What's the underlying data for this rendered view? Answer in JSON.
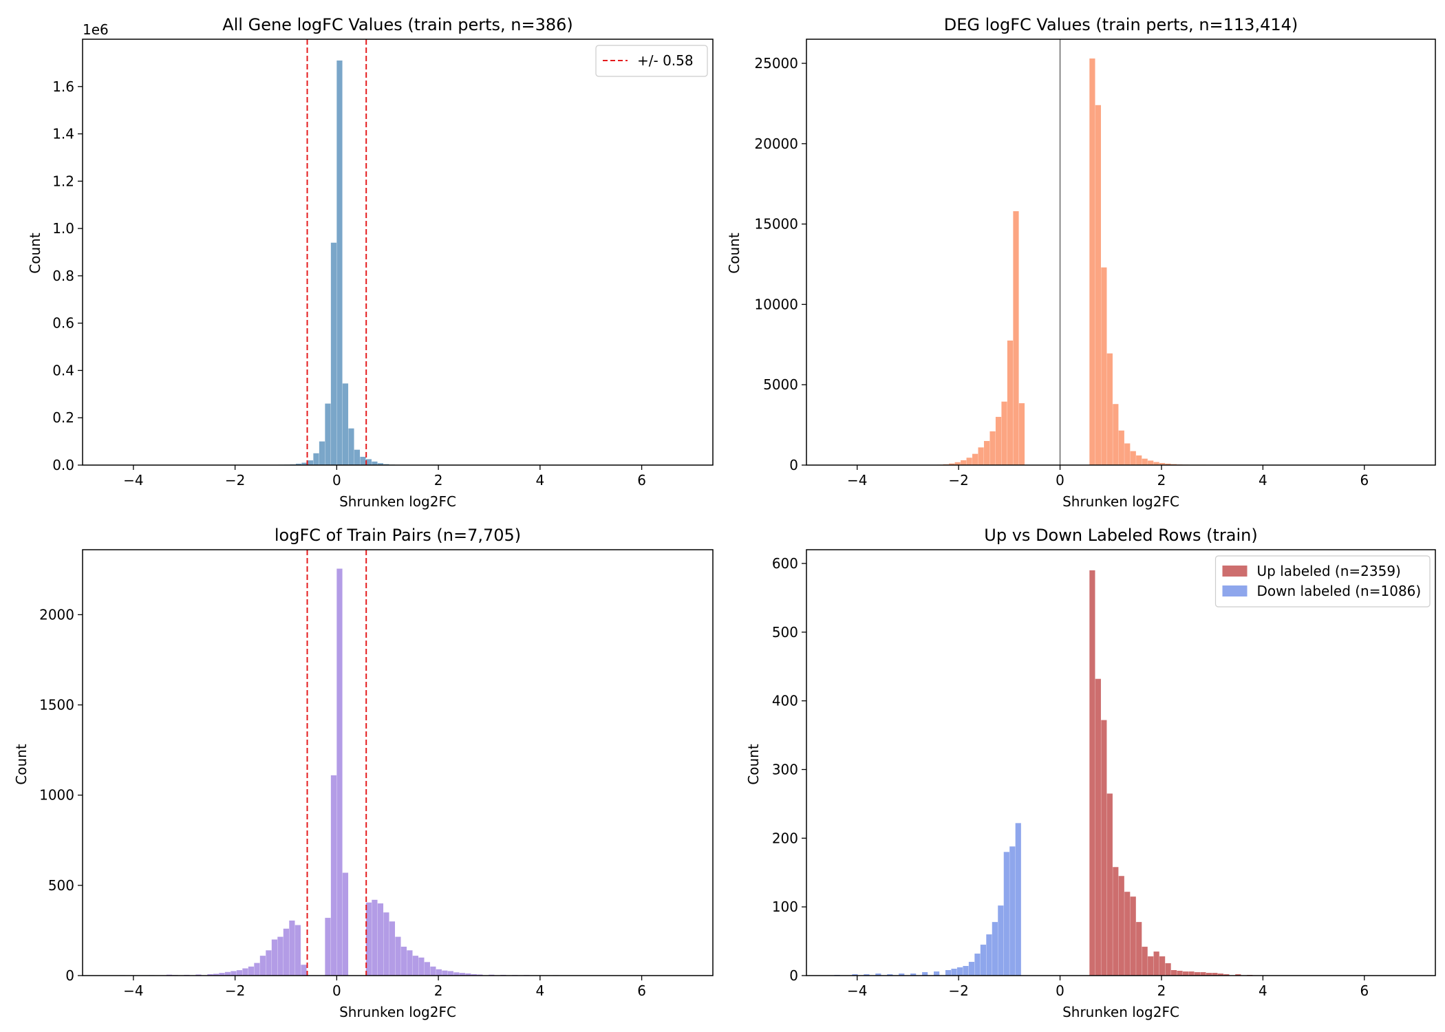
{
  "chart_data": [
    {
      "type": "bar",
      "title": "All Gene logFC Values (train perts, n=386)",
      "xlabel": "Shrunken log2FC",
      "ylabel": "Count",
      "y_offset_label": "1e6",
      "xlim": [
        -5.0,
        7.4
      ],
      "ylim": [
        0,
        1.8
      ],
      "x_ticks": [
        -4,
        -2,
        0,
        2,
        4,
        6
      ],
      "x_tick_labels": [
        "−4",
        "−2",
        "0",
        "2",
        "4",
        "6"
      ],
      "y_ticks": [
        0,
        0.2,
        0.4,
        0.6,
        0.8,
        1.0,
        1.2,
        1.4,
        1.6
      ],
      "y_tick_labels": [
        "0.0",
        "0.2",
        "0.4",
        "0.6",
        "0.8",
        "1.0",
        "1.2",
        "1.4",
        "1.6"
      ],
      "bin_width": 0.115,
      "color": "#7aa6c9",
      "series": [
        {
          "name": "",
          "bins": [
            [
              -1.15,
              0.001
            ],
            [
              -1.035,
              0.002
            ],
            [
              -0.92,
              0.003
            ],
            [
              -0.805,
              0.006
            ],
            [
              -0.69,
              0.01
            ],
            [
              -0.575,
              0.02
            ],
            [
              -0.46,
              0.05
            ],
            [
              -0.345,
              0.1
            ],
            [
              -0.23,
              0.26
            ],
            [
              -0.115,
              0.94
            ],
            [
              0.0,
              1.71
            ],
            [
              0.115,
              0.345
            ],
            [
              0.23,
              0.155
            ],
            [
              0.345,
              0.065
            ],
            [
              0.46,
              0.035
            ],
            [
              0.575,
              0.025
            ],
            [
              0.69,
              0.015
            ],
            [
              0.805,
              0.008
            ],
            [
              0.92,
              0.004
            ],
            [
              1.035,
              0.002
            ]
          ]
        }
      ],
      "vlines": [
        {
          "x": -0.58,
          "color": "#e41a1c",
          "style": "dashed"
        },
        {
          "x": 0.58,
          "color": "#e41a1c",
          "style": "dashed"
        }
      ],
      "legend": {
        "position": "top-right",
        "entries": [
          {
            "label": "+/- 0.58",
            "kind": "dashed-line",
            "color": "#e41a1c"
          }
        ]
      }
    },
    {
      "type": "bar",
      "title": "DEG logFC Values (train perts, n=113,414)",
      "xlabel": "Shrunken log2FC",
      "ylabel": "Count",
      "xlim": [
        -5.0,
        7.4
      ],
      "ylim": [
        0,
        26500
      ],
      "x_ticks": [
        -4,
        -2,
        0,
        2,
        4,
        6
      ],
      "x_tick_labels": [
        "−4",
        "−2",
        "0",
        "2",
        "4",
        "6"
      ],
      "y_ticks": [
        0,
        5000,
        10000,
        15000,
        20000,
        25000
      ],
      "y_tick_labels": [
        "0",
        "5000",
        "10000",
        "15000",
        "20000",
        "25000"
      ],
      "bin_width": 0.1155,
      "color": "#fca582",
      "series": [
        {
          "name": "",
          "bins": [
            [
              -2.42,
              20
            ],
            [
              -2.305,
              50
            ],
            [
              -2.19,
              100
            ],
            [
              -2.075,
              180
            ],
            [
              -1.96,
              300
            ],
            [
              -1.845,
              460
            ],
            [
              -1.73,
              700
            ],
            [
              -1.615,
              1100
            ],
            [
              -1.5,
              1500
            ],
            [
              -1.385,
              2100
            ],
            [
              -1.27,
              3000
            ],
            [
              -1.155,
              3950
            ],
            [
              -1.04,
              7750
            ],
            [
              -0.925,
              15800
            ],
            [
              -0.81,
              3850
            ],
            [
              0.58,
              25300
            ],
            [
              0.695,
              22400
            ],
            [
              0.81,
              12300
            ],
            [
              0.925,
              6950
            ],
            [
              1.04,
              3800
            ],
            [
              1.155,
              2150
            ],
            [
              1.27,
              1350
            ],
            [
              1.385,
              870
            ],
            [
              1.5,
              600
            ],
            [
              1.615,
              400
            ],
            [
              1.73,
              280
            ],
            [
              1.845,
              190
            ],
            [
              1.96,
              130
            ],
            [
              2.075,
              90
            ],
            [
              2.19,
              60
            ],
            [
              2.305,
              40
            ],
            [
              2.42,
              30
            ],
            [
              2.535,
              20
            ],
            [
              2.65,
              12
            ],
            [
              2.765,
              8
            ]
          ]
        }
      ],
      "vlines": [
        {
          "x": 0,
          "color": "#555555",
          "style": "solid"
        }
      ]
    },
    {
      "type": "bar",
      "title": "logFC of Train Pairs (n=7,705)",
      "xlabel": "Shrunken log2FC",
      "ylabel": "Count",
      "xlim": [
        -5.0,
        7.4
      ],
      "ylim": [
        0,
        2360
      ],
      "x_ticks": [
        -4,
        -2,
        0,
        2,
        4,
        6
      ],
      "x_tick_labels": [
        "−4",
        "−2",
        "0",
        "2",
        "4",
        "6"
      ],
      "y_ticks": [
        0,
        500,
        1000,
        1500,
        2000
      ],
      "y_tick_labels": [
        "0",
        "500",
        "1000",
        "1500",
        "2000"
      ],
      "bin_width": 0.115,
      "color": "#b39ce6",
      "series": [
        {
          "name": "",
          "bins": [
            [
              -4.27,
              2
            ],
            [
              -3.695,
              2
            ],
            [
              -3.35,
              5
            ],
            [
              -3.235,
              3
            ],
            [
              -3.005,
              4
            ],
            [
              -2.775,
              6
            ],
            [
              -2.545,
              8
            ],
            [
              -2.43,
              10
            ],
            [
              -2.315,
              15
            ],
            [
              -2.2,
              20
            ],
            [
              -2.085,
              25
            ],
            [
              -1.97,
              30
            ],
            [
              -1.855,
              40
            ],
            [
              -1.74,
              50
            ],
            [
              -1.625,
              70
            ],
            [
              -1.51,
              110
            ],
            [
              -1.395,
              140
            ],
            [
              -1.28,
              200
            ],
            [
              -1.165,
              215
            ],
            [
              -1.05,
              260
            ],
            [
              -0.935,
              305
            ],
            [
              -0.82,
              280
            ],
            [
              -0.705,
              60
            ],
            [
              -0.23,
              320
            ],
            [
              -0.115,
              1110
            ],
            [
              0.0,
              2255
            ],
            [
              0.115,
              570
            ],
            [
              0.575,
              405
            ],
            [
              0.69,
              420
            ],
            [
              0.805,
              400
            ],
            [
              0.92,
              350
            ],
            [
              1.035,
              300
            ],
            [
              1.15,
              215
            ],
            [
              1.265,
              160
            ],
            [
              1.38,
              140
            ],
            [
              1.495,
              110
            ],
            [
              1.61,
              100
            ],
            [
              1.725,
              75
            ],
            [
              1.84,
              50
            ],
            [
              1.955,
              35
            ],
            [
              2.07,
              28
            ],
            [
              2.185,
              25
            ],
            [
              2.3,
              18
            ],
            [
              2.415,
              15
            ],
            [
              2.53,
              12
            ],
            [
              2.645,
              8
            ],
            [
              2.76,
              6
            ],
            [
              2.99,
              5
            ],
            [
              3.22,
              4
            ],
            [
              3.45,
              3
            ],
            [
              3.68,
              3
            ],
            [
              4.255,
              2
            ]
          ]
        }
      ],
      "vlines": [
        {
          "x": -0.58,
          "color": "#e41a1c",
          "style": "dashed"
        },
        {
          "x": 0.58,
          "color": "#e41a1c",
          "style": "dashed"
        }
      ]
    },
    {
      "type": "bar",
      "title": "Up vs Down Labeled Rows (train)",
      "xlabel": "Shrunken log2FC",
      "ylabel": "Count",
      "xlim": [
        -5.0,
        7.4
      ],
      "ylim": [
        0,
        620
      ],
      "x_ticks": [
        -4,
        -2,
        0,
        2,
        4,
        6
      ],
      "x_tick_labels": [
        "−4",
        "−2",
        "0",
        "2",
        "4",
        "6"
      ],
      "y_ticks": [
        0,
        100,
        200,
        300,
        400,
        500,
        600
      ],
      "y_tick_labels": [
        "0",
        "100",
        "200",
        "300",
        "400",
        "500",
        "600"
      ],
      "bin_width": 0.115,
      "series": [
        {
          "name": "Up labeled (n=2359)",
          "color": "#cd6e6e",
          "bins": [
            [
              0.58,
              590
            ],
            [
              0.695,
              432
            ],
            [
              0.81,
              372
            ],
            [
              0.925,
              265
            ],
            [
              1.04,
              158
            ],
            [
              1.155,
              145
            ],
            [
              1.27,
              122
            ],
            [
              1.385,
              115
            ],
            [
              1.5,
              78
            ],
            [
              1.615,
              42
            ],
            [
              1.73,
              28
            ],
            [
              1.845,
              35
            ],
            [
              1.96,
              28
            ],
            [
              2.075,
              18
            ],
            [
              2.19,
              8
            ],
            [
              2.305,
              7
            ],
            [
              2.42,
              6
            ],
            [
              2.535,
              6
            ],
            [
              2.65,
              5
            ],
            [
              2.765,
              5
            ],
            [
              2.88,
              4
            ],
            [
              2.995,
              4
            ],
            [
              3.11,
              3
            ],
            [
              3.225,
              2
            ],
            [
              3.455,
              2
            ],
            [
              3.685,
              1
            ]
          ]
        },
        {
          "name": "Down labeled (n=1086)",
          "color": "#8ea6ec",
          "bins": [
            [
              -4.45,
              1
            ],
            [
              -4.1,
              2
            ],
            [
              -3.87,
              2
            ],
            [
              -3.64,
              3
            ],
            [
              -3.41,
              2
            ],
            [
              -3.18,
              3
            ],
            [
              -2.95,
              3
            ],
            [
              -2.72,
              5
            ],
            [
              -2.49,
              6
            ],
            [
              -2.26,
              8
            ],
            [
              -2.145,
              10
            ],
            [
              -2.03,
              12
            ],
            [
              -1.915,
              14
            ],
            [
              -1.8,
              20
            ],
            [
              -1.685,
              32
            ],
            [
              -1.57,
              45
            ],
            [
              -1.455,
              60
            ],
            [
              -1.34,
              78
            ],
            [
              -1.225,
              102
            ],
            [
              -1.11,
              180
            ],
            [
              -0.995,
              188
            ],
            [
              -0.88,
              222
            ]
          ]
        }
      ],
      "legend": {
        "position": "top-right",
        "entries": [
          {
            "label": "Up labeled (n=2359)",
            "kind": "patch",
            "color": "#cd6e6e"
          },
          {
            "label": "Down labeled (n=1086)",
            "kind": "patch",
            "color": "#8ea6ec"
          }
        ]
      }
    }
  ]
}
